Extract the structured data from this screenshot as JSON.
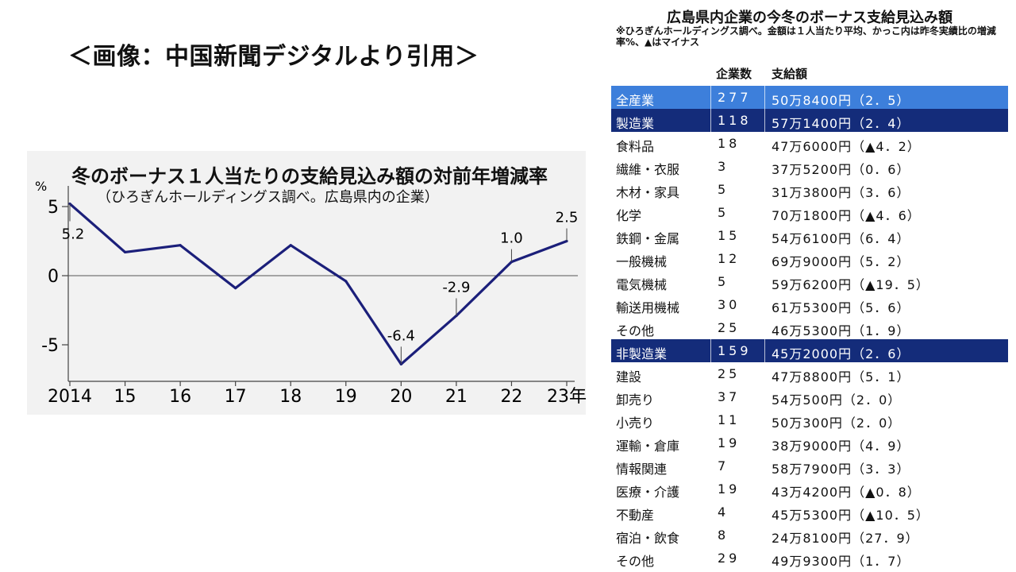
{
  "caption": "＜画像：中国新聞デジタルより引用＞",
  "chart_data": {
    "type": "line",
    "title": "冬のボーナス１人当たりの支給見込み額の対前年増減率",
    "subtitle": "（ひろぎんホールディングス調べ。広島県内の企業）",
    "ylabel": "%",
    "ylim": [
      -7.5,
      6
    ],
    "y_ticks": [
      "5",
      "0",
      "-5"
    ],
    "y_tick_values": [
      5,
      0,
      -5
    ],
    "categories": [
      "2014",
      "15",
      "16",
      "17",
      "18",
      "19",
      "20",
      "21",
      "22",
      "23年"
    ],
    "series": [
      {
        "values": [
          5.2,
          1.7,
          2.2,
          -0.9,
          2.2,
          -0.4,
          -6.4,
          -2.9,
          1.0,
          2.5
        ]
      }
    ],
    "data_labels": [
      {
        "index": 0,
        "text": "5.2"
      },
      {
        "index": 6,
        "text": "-6.4"
      },
      {
        "index": 7,
        "text": "-2.9"
      },
      {
        "index": 8,
        "text": "1.0"
      },
      {
        "index": 9,
        "text": "2.5"
      }
    ],
    "line_color": "#1b1f7a",
    "grid": false
  },
  "table": {
    "title": "広島県内企業の今冬のボーナス支給見込み額",
    "note": "※ひろぎんホールディングス調べ。金額は１人当たり平均、かっこ内は昨冬実績比の増減率%、▲はマイナス",
    "headers": [
      "企業数",
      "支給額"
    ],
    "rows": [
      {
        "sector": "全産業",
        "count": "277",
        "amount": "50万8400円（2．5）",
        "style": "total"
      },
      {
        "sector": "製造業",
        "count": "118",
        "amount": "57万1400円（2．4）",
        "style": "sector"
      },
      {
        "sector": "食料品",
        "count": "18",
        "amount": "47万6000円（▲4．2）",
        "style": "plain"
      },
      {
        "sector": "繊維・衣服",
        "count": "3",
        "amount": "37万5200円（0．6）",
        "style": "plain"
      },
      {
        "sector": "木材・家具",
        "count": "5",
        "amount": "31万3800円（3．6）",
        "style": "plain"
      },
      {
        "sector": "化学",
        "count": "5",
        "amount": "70万1800円（▲4．6）",
        "style": "plain"
      },
      {
        "sector": "鉄鋼・金属",
        "count": "15",
        "amount": "54万6100円（6．4）",
        "style": "plain"
      },
      {
        "sector": "一般機械",
        "count": "12",
        "amount": "69万9000円（5．2）",
        "style": "plain"
      },
      {
        "sector": "電気機械",
        "count": "5",
        "amount": "59万6200円（▲19．5）",
        "style": "plain"
      },
      {
        "sector": "輸送用機械",
        "count": "30",
        "amount": "61万5300円（5．6）",
        "style": "plain"
      },
      {
        "sector": "その他",
        "count": "25",
        "amount": "46万5300円（1．9）",
        "style": "plain"
      },
      {
        "sector": "非製造業",
        "count": "159",
        "amount": "45万2000円（2．6）",
        "style": "sector"
      },
      {
        "sector": "建設",
        "count": "25",
        "amount": "47万8800円（5．1）",
        "style": "plain"
      },
      {
        "sector": "卸売り",
        "count": "37",
        "amount": "54万500円（2．0）",
        "style": "plain"
      },
      {
        "sector": "小売り",
        "count": "11",
        "amount": "50万300円（2．0）",
        "style": "plain"
      },
      {
        "sector": "運輸・倉庫",
        "count": "19",
        "amount": "38万9000円（4．9）",
        "style": "plain"
      },
      {
        "sector": "情報関連",
        "count": "7",
        "amount": "58万7900円（3．3）",
        "style": "plain"
      },
      {
        "sector": "医療・介護",
        "count": "19",
        "amount": "43万4200円（▲0．8）",
        "style": "plain"
      },
      {
        "sector": "不動産",
        "count": "4",
        "amount": "45万5300円（▲10．5）",
        "style": "plain"
      },
      {
        "sector": "宿泊・飲食",
        "count": "8",
        "amount": "24万8100円（27．9）",
        "style": "plain"
      },
      {
        "sector": "その他",
        "count": "29",
        "amount": "49万9300円（1．7）",
        "style": "plain"
      }
    ]
  }
}
